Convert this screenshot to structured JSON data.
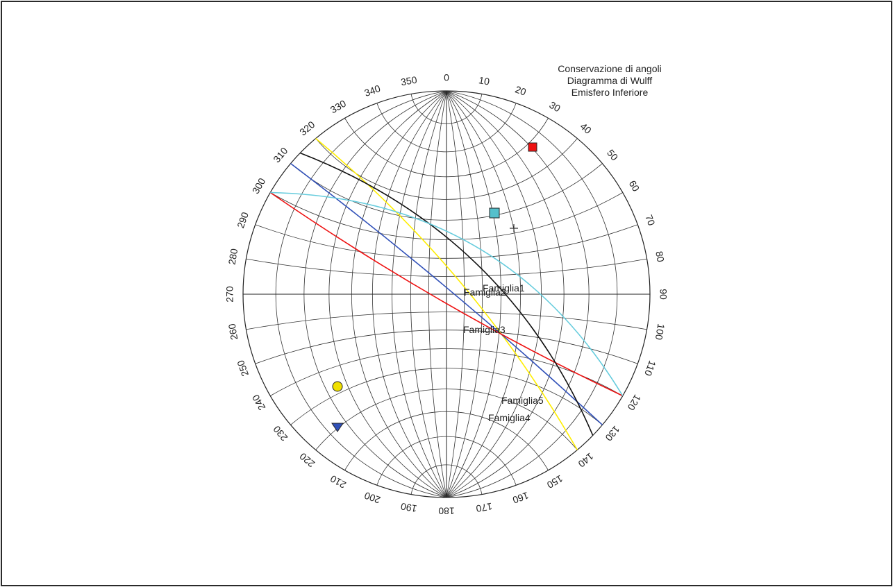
{
  "title_lines": [
    "Conservazione di angoli",
    "Diagramma di Wulff",
    "Emisfero Inferiore"
  ],
  "azimuth_labels": [
    "0",
    "10",
    "20",
    "30",
    "40",
    "50",
    "60",
    "70",
    "80",
    "90",
    "100",
    "110",
    "120",
    "130",
    "140",
    "150",
    "160",
    "170",
    "180",
    "190",
    "200",
    "210",
    "220",
    "230",
    "240",
    "250",
    "260",
    "270",
    "280",
    "290",
    "300",
    "310",
    "320",
    "330",
    "340",
    "350"
  ],
  "families": [
    {
      "label": "Famiglia1",
      "color": "#ffee00",
      "strike_deg": 320
    },
    {
      "label": "Famiglia2",
      "color": "#3050b8",
      "strike_deg": 310
    },
    {
      "label": "Famiglia3",
      "color": "#ee1111",
      "strike_deg": 300
    },
    {
      "label": "Famiglia4",
      "color": "#111111",
      "strike_deg": 314
    },
    {
      "label": "Famiglia5",
      "color": "#66ccdd",
      "strike_deg": 300
    }
  ],
  "poles": [
    {
      "shape": "square",
      "color": "#ee1111"
    },
    {
      "shape": "square",
      "color": "#55c0cc"
    },
    {
      "shape": "circle",
      "color": "#f0e000"
    },
    {
      "shape": "triangle",
      "color": "#3050b8"
    },
    {
      "shape": "cross",
      "color": "#333333"
    }
  ]
}
